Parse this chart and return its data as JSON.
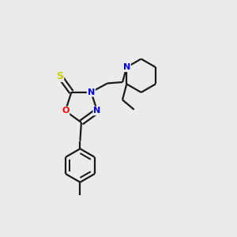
{
  "background_color": "#ebebeb",
  "bond_color": "#1a1a1a",
  "atom_colors": {
    "S": "#cccc00",
    "O": "#ff0000",
    "N": "#0000ee",
    "C": "#1a1a1a"
  },
  "line_width": 1.6,
  "fig_size": [
    3.0,
    3.0
  ],
  "dpi": 100
}
